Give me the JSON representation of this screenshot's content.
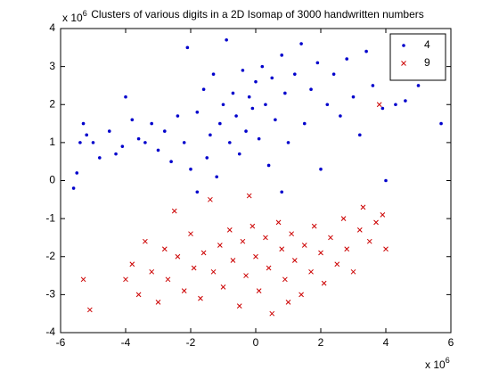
{
  "chart_data": {
    "type": "scatter",
    "title": "Clusters of various digits in a 2D Isomap of 3000 handwritten numbers",
    "x_multiplier": {
      "base": "x 10",
      "power": "6"
    },
    "y_multiplier": {
      "base": "x 10",
      "power": "6"
    },
    "xlim": [
      -6,
      6
    ],
    "ylim": [
      -4,
      4
    ],
    "xticks": [
      -6,
      -4,
      -2,
      0,
      2,
      4,
      6
    ],
    "yticks": [
      -4,
      -3,
      -2,
      -1,
      0,
      1,
      2,
      3,
      4
    ],
    "grid": false,
    "legend_position": "upper-right",
    "series": [
      {
        "name": "4",
        "color": "#0000cc",
        "marker": "dot",
        "x": [
          -5.6,
          -5.5,
          -5.4,
          -5.3,
          -5.2,
          -5.0,
          -4.8,
          -4.5,
          -4.3,
          -4.1,
          -4.0,
          -3.8,
          -3.6,
          -3.4,
          -3.2,
          -3.0,
          -2.8,
          -2.6,
          -2.4,
          -2.2,
          -2.1,
          -2.0,
          -1.8,
          -1.6,
          -1.5,
          -1.4,
          -1.3,
          -1.2,
          -1.1,
          -1.0,
          -0.9,
          -0.8,
          -0.7,
          -0.6,
          -0.5,
          -0.4,
          -0.3,
          -0.2,
          -0.1,
          0.0,
          0.1,
          0.2,
          0.3,
          0.4,
          0.5,
          0.6,
          0.8,
          0.9,
          1.0,
          1.2,
          1.4,
          1.5,
          1.7,
          1.9,
          2.0,
          2.2,
          2.4,
          2.6,
          2.8,
          3.0,
          3.2,
          3.4,
          3.6,
          3.9,
          4.0,
          4.3,
          4.6,
          5.0,
          5.7,
          -1.8,
          0.8
        ],
        "values": [
          -0.2,
          0.2,
          1.0,
          1.5,
          1.2,
          1.0,
          0.6,
          1.3,
          0.7,
          0.9,
          2.2,
          1.6,
          1.1,
          1.0,
          1.5,
          0.8,
          1.3,
          0.5,
          1.7,
          1.0,
          3.5,
          0.3,
          1.8,
          2.4,
          0.6,
          1.2,
          2.8,
          0.1,
          1.5,
          2.0,
          3.7,
          1.0,
          2.3,
          1.7,
          0.7,
          2.9,
          1.3,
          2.2,
          1.9,
          2.6,
          1.1,
          3.0,
          2.0,
          0.4,
          2.7,
          1.6,
          3.3,
          2.3,
          1.0,
          2.8,
          3.6,
          1.5,
          2.4,
          3.1,
          0.3,
          2.0,
          2.8,
          1.7,
          3.2,
          2.2,
          1.2,
          3.4,
          2.5,
          1.9,
          0.0,
          2.0,
          2.1,
          2.5,
          1.5,
          -0.3,
          -0.3
        ]
      },
      {
        "name": "9",
        "color": "#cc0000",
        "marker": "x",
        "x": [
          -5.3,
          -5.1,
          -4.0,
          -3.8,
          -3.6,
          -3.4,
          -3.2,
          -3.0,
          -2.8,
          -2.7,
          -2.5,
          -2.4,
          -2.2,
          -2.0,
          -1.9,
          -1.7,
          -1.6,
          -1.4,
          -1.3,
          -1.1,
          -1.0,
          -0.8,
          -0.7,
          -0.5,
          -0.4,
          -0.3,
          -0.1,
          0.0,
          0.1,
          0.3,
          0.4,
          0.5,
          0.7,
          0.8,
          0.9,
          1.1,
          1.2,
          1.4,
          1.5,
          1.7,
          1.8,
          2.0,
          2.1,
          2.3,
          2.5,
          2.7,
          2.8,
          3.0,
          3.2,
          3.3,
          3.5,
          3.7,
          3.9,
          4.0,
          3.8,
          -0.2,
          1.0
        ],
        "values": [
          -2.6,
          -3.4,
          -2.6,
          -2.2,
          -3.0,
          -1.6,
          -2.4,
          -3.2,
          -1.8,
          -2.6,
          -0.8,
          -2.0,
          -2.9,
          -1.4,
          -2.3,
          -3.1,
          -1.9,
          -0.5,
          -2.4,
          -1.7,
          -2.8,
          -1.3,
          -2.1,
          -3.3,
          -1.6,
          -2.5,
          -1.2,
          -2.0,
          -2.9,
          -1.5,
          -2.3,
          -3.5,
          -1.1,
          -1.8,
          -2.6,
          -1.4,
          -2.1,
          -3.0,
          -1.7,
          -2.4,
          -1.2,
          -1.9,
          -2.7,
          -1.5,
          -2.2,
          -1.0,
          -1.8,
          -2.4,
          -1.3,
          -0.7,
          -1.6,
          -1.1,
          -0.9,
          -1.8,
          2.0,
          -0.4,
          -3.2
        ]
      }
    ]
  }
}
